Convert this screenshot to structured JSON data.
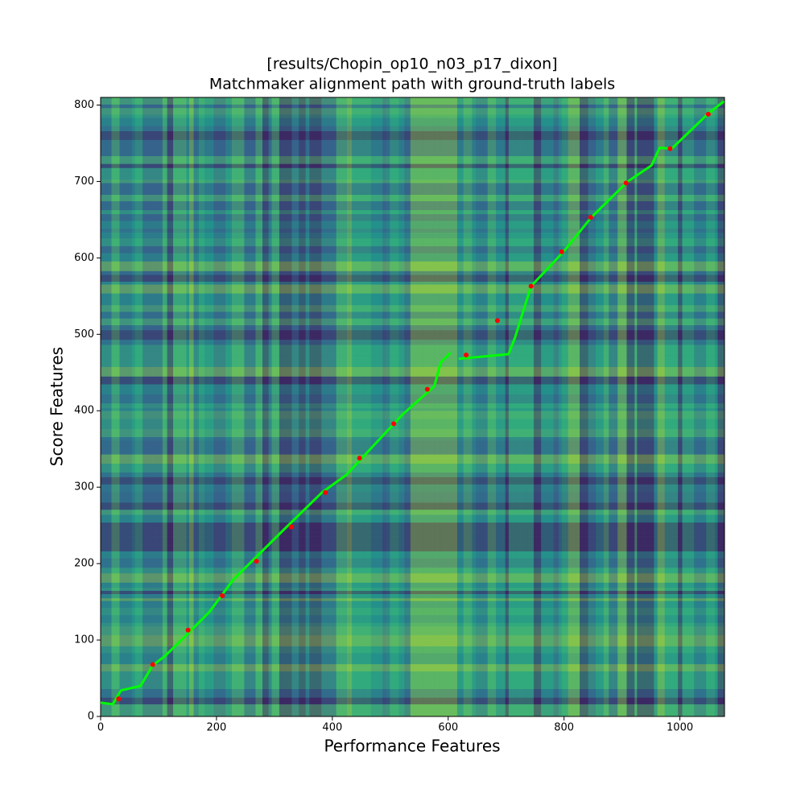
{
  "chart_data": {
    "type": "heatmap",
    "title": [
      "[results/Chopin_op10_n03_p17_dixon]",
      "Matchmaker alignment path with ground-truth labels"
    ],
    "x_label": "Performance Features",
    "y_label": "Score Features",
    "xlim": [
      0,
      1077
    ],
    "ylim": [
      0,
      810
    ],
    "xticks": [
      0,
      200,
      400,
      600,
      800,
      1000
    ],
    "yticks": [
      0,
      100,
      200,
      300,
      400,
      500,
      600,
      700,
      800
    ],
    "path": {
      "color": "#00ff00",
      "x": [
        0,
        21,
        35,
        69,
        90,
        111,
        146,
        188,
        229,
        313,
        382,
        424,
        521,
        576,
        587,
        604,
        null,
        618,
        704,
        715,
        743,
        799,
        847,
        910,
        951,
        965,
        986,
        1049,
        1076
      ],
      "y": [
        18,
        16,
        34,
        40,
        67,
        79,
        105,
        137,
        179,
        242,
        293,
        316,
        395,
        432,
        463,
        476,
        null,
        468,
        474,
        495,
        563,
        608,
        653,
        700,
        721,
        744,
        743,
        789,
        805
      ]
    },
    "labels": {
      "color": "#ff0000",
      "x": [
        31,
        90,
        151,
        210,
        269,
        329,
        388,
        447,
        506,
        564,
        631,
        685,
        743,
        796,
        846,
        907,
        983,
        1049
      ],
      "y": [
        23,
        68,
        113,
        158,
        203,
        248,
        293,
        338,
        383,
        428,
        473,
        518,
        563,
        608,
        653,
        698,
        743,
        788
      ]
    }
  }
}
